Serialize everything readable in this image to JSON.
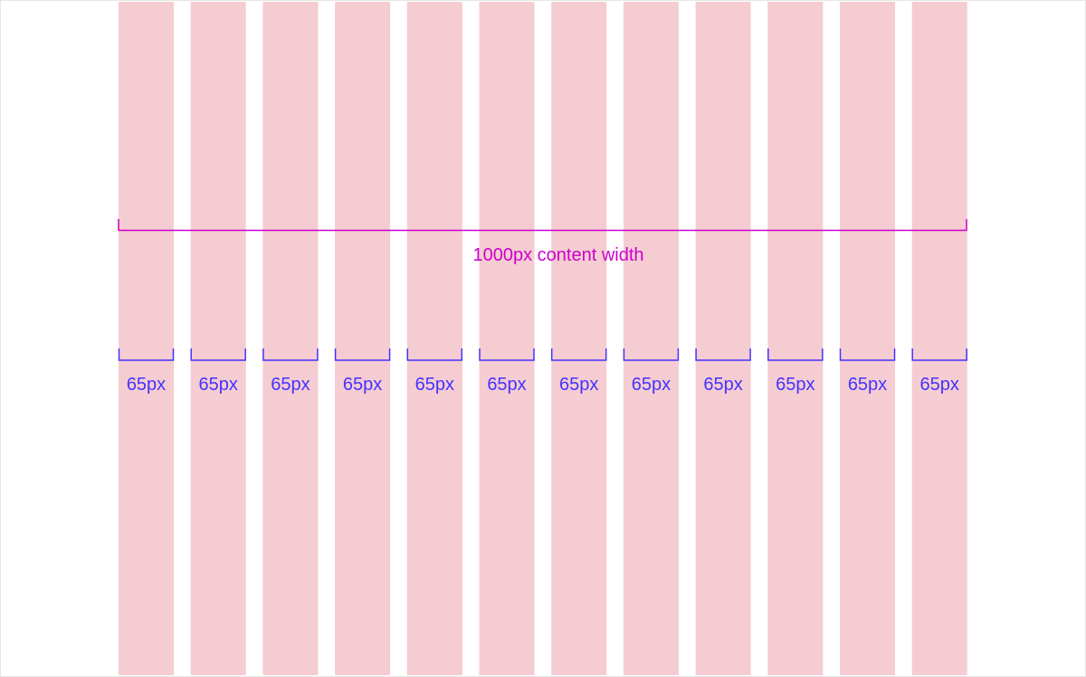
{
  "diagram": {
    "content_width_label": "1000px content width",
    "columns": [
      {
        "label": "65px"
      },
      {
        "label": "65px"
      },
      {
        "label": "65px"
      },
      {
        "label": "65px"
      },
      {
        "label": "65px"
      },
      {
        "label": "65px"
      },
      {
        "label": "65px"
      },
      {
        "label": "65px"
      },
      {
        "label": "65px"
      },
      {
        "label": "65px"
      },
      {
        "label": "65px"
      },
      {
        "label": "65px"
      }
    ]
  },
  "colors": {
    "column_fill": "#f5ccd1",
    "content_width_color": "#cc00cc",
    "column_label_color": "#4433ff",
    "background": "#ffffff",
    "border": "#e6e6e6"
  }
}
